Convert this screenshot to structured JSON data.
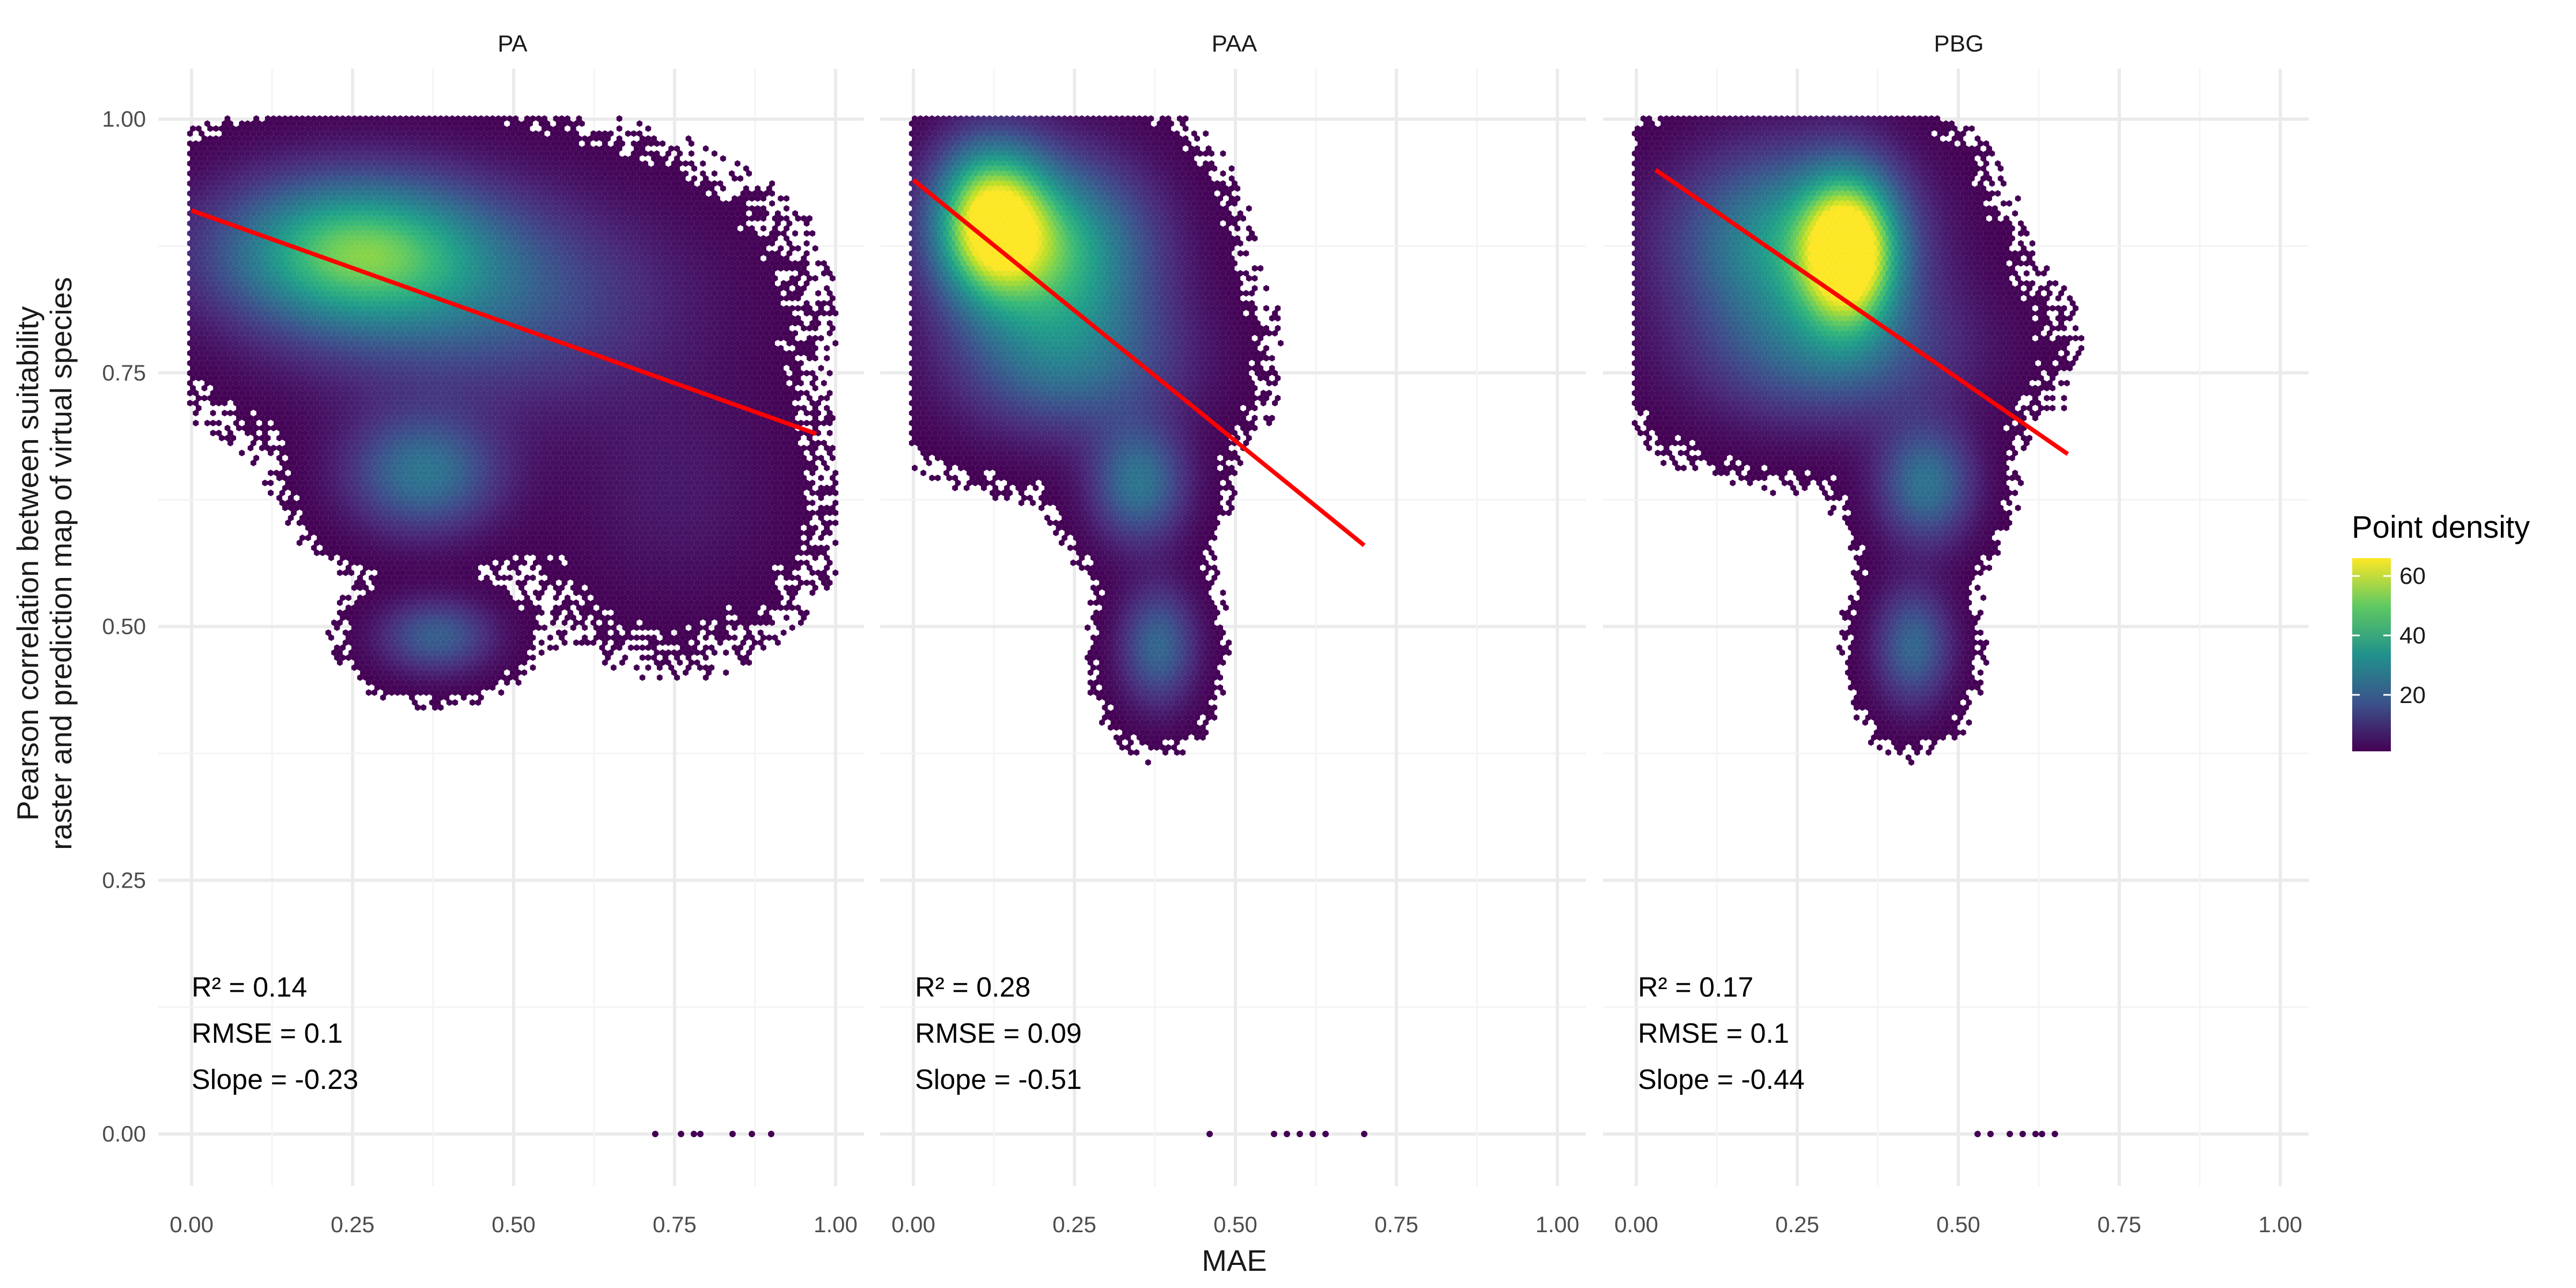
{
  "chart_data": [
    {
      "type": "hexbin",
      "panel": "PA",
      "xlabel": "MAE",
      "ylabel": "Pearson correlation between suitability\nraster and prediction map of virtual species",
      "xlim": [
        0,
        1
      ],
      "ylim": [
        0,
        1
      ],
      "xticks": [
        "0.00",
        "0.25",
        "0.50",
        "0.75",
        "1.00"
      ],
      "yticks": [
        "0.00",
        "0.25",
        "0.50",
        "0.75",
        "1.00"
      ],
      "fit_line": {
        "x": [
          0.0,
          0.97
        ],
        "y": [
          0.91,
          0.69
        ],
        "color": "#ff0000"
      },
      "clusters": [
        {
          "x": 0.25,
          "y": 0.87,
          "sx": 0.14,
          "sy": 0.05,
          "density": 45
        },
        {
          "x": 0.45,
          "y": 0.82,
          "sx": 0.2,
          "sy": 0.07,
          "density": 18
        },
        {
          "x": 0.36,
          "y": 0.65,
          "sx": 0.08,
          "sy": 0.04,
          "density": 25
        },
        {
          "x": 0.38,
          "y": 0.49,
          "sx": 0.06,
          "sy": 0.025,
          "density": 20
        },
        {
          "x": 0.75,
          "y": 0.63,
          "sx": 0.12,
          "sy": 0.08,
          "density": 5
        }
      ],
      "zero_points": [
        0.72,
        0.76,
        0.78,
        0.79,
        0.84,
        0.87,
        0.9
      ],
      "stats": {
        "r2": "R² = 0.14",
        "rmse": "RMSE = 0.1",
        "slope": "Slope = -0.23"
      }
    },
    {
      "type": "hexbin",
      "panel": "PAA",
      "xlabel": "MAE",
      "xlim": [
        0,
        1
      ],
      "ylim": [
        0,
        1
      ],
      "xticks": [
        "0.00",
        "0.25",
        "0.50",
        "0.75",
        "1.00"
      ],
      "fit_line": {
        "x": [
          0.0,
          0.7
        ],
        "y": [
          0.94,
          0.58
        ],
        "color": "#ff0000"
      },
      "clusters": [
        {
          "x": 0.12,
          "y": 0.9,
          "sx": 0.06,
          "sy": 0.05,
          "density": 60
        },
        {
          "x": 0.22,
          "y": 0.87,
          "sx": 0.1,
          "sy": 0.06,
          "density": 40
        },
        {
          "x": 0.24,
          "y": 0.76,
          "sx": 0.12,
          "sy": 0.05,
          "density": 22
        },
        {
          "x": 0.35,
          "y": 0.64,
          "sx": 0.05,
          "sy": 0.04,
          "density": 25
        },
        {
          "x": 0.38,
          "y": 0.48,
          "sx": 0.04,
          "sy": 0.04,
          "density": 22
        }
      ],
      "zero_points": [
        0.46,
        0.56,
        0.58,
        0.6,
        0.62,
        0.64,
        0.7
      ],
      "stats": {
        "r2": "R² = 0.28",
        "rmse": "RMSE = 0.09",
        "slope": "Slope = -0.51"
      }
    },
    {
      "type": "hexbin",
      "panel": "PBG",
      "xlabel": "MAE",
      "xlim": [
        0,
        1
      ],
      "ylim": [
        0,
        1
      ],
      "xticks": [
        "0.00",
        "0.25",
        "0.50",
        "0.75",
        "1.00"
      ],
      "fit_line": {
        "x": [
          0.03,
          0.67
        ],
        "y": [
          0.95,
          0.67
        ],
        "color": "#ff0000"
      },
      "clusters": [
        {
          "x": 0.33,
          "y": 0.87,
          "sx": 0.05,
          "sy": 0.05,
          "density": 62
        },
        {
          "x": 0.24,
          "y": 0.88,
          "sx": 0.12,
          "sy": 0.06,
          "density": 35
        },
        {
          "x": 0.3,
          "y": 0.77,
          "sx": 0.14,
          "sy": 0.05,
          "density": 20
        },
        {
          "x": 0.45,
          "y": 0.64,
          "sx": 0.05,
          "sy": 0.04,
          "density": 25
        },
        {
          "x": 0.43,
          "y": 0.48,
          "sx": 0.04,
          "sy": 0.04,
          "density": 22
        }
      ],
      "zero_points": [
        0.53,
        0.55,
        0.58,
        0.6,
        0.62,
        0.63,
        0.65
      ],
      "stats": {
        "r2": "R² = 0.17",
        "rmse": "RMSE = 0.1",
        "slope": "Slope = -0.44"
      }
    }
  ],
  "legend": {
    "title": "Point density",
    "ticks": [
      "20",
      "40",
      "60"
    ],
    "tick_values": [
      20,
      40,
      60
    ],
    "range": [
      1,
      66
    ],
    "colormap": "viridis"
  },
  "axis_titles": {
    "x": "MAE",
    "y_line1": "Pearson correlation between suitability",
    "y_line2": "raster and prediction map of virtual species"
  },
  "colors": {
    "fit_line": "#ff0000",
    "viridis_low": "#440154",
    "viridis_mid": "#21918c",
    "viridis_high": "#fde725"
  }
}
